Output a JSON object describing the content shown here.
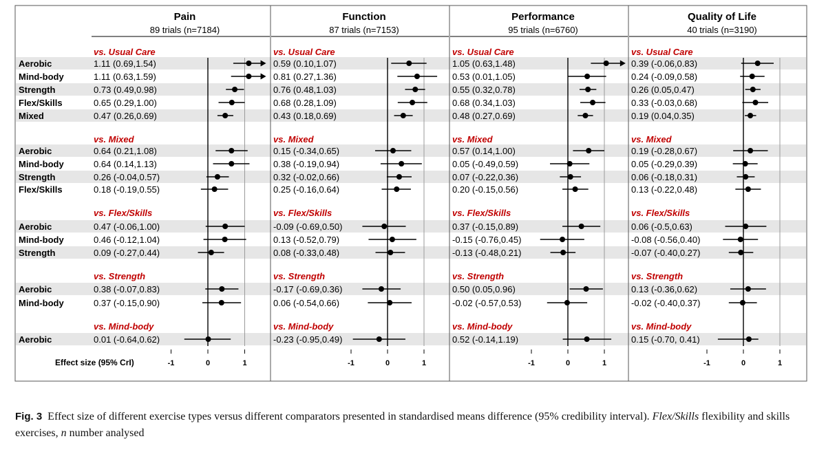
{
  "chart_data": {
    "type": "forest",
    "ylabel_row": "Effect size (95% CrI)",
    "xlim": [
      -1,
      1
    ],
    "ticks": [
      -1,
      0,
      1
    ],
    "tick_labels": [
      "-1",
      "0",
      "1"
    ],
    "panels": [
      {
        "title": "Pain",
        "subtitle": "89 trials (n=7184)",
        "groups": [
          {
            "label": "vs. Usual Care",
            "rows": [
              {
                "name": "Aerobic",
                "text": "1.11 (0.69,1.54)",
                "est": 1.11,
                "lo": 0.69,
                "hi": 1.54
              },
              {
                "name": "Mind-body",
                "text": "1.11 (0.63,1.59)",
                "est": 1.11,
                "lo": 0.63,
                "hi": 1.59
              },
              {
                "name": "Strength",
                "text": "0.73 (0.49,0.98)",
                "est": 0.73,
                "lo": 0.49,
                "hi": 0.98
              },
              {
                "name": "Flex/Skills",
                "text": "0.65 (0.29,1.00)",
                "est": 0.65,
                "lo": 0.29,
                "hi": 1.0
              },
              {
                "name": "Mixed",
                "text": "0.47 (0.26,0.69)",
                "est": 0.47,
                "lo": 0.26,
                "hi": 0.69
              }
            ]
          },
          {
            "label": "vs. Mixed",
            "rows": [
              {
                "name": "Aerobic",
                "text": "0.64 (0.21,1.08)",
                "est": 0.64,
                "lo": 0.21,
                "hi": 1.08
              },
              {
                "name": "Mind-body",
                "text": "0.64 (0.14,1.13)",
                "est": 0.64,
                "lo": 0.14,
                "hi": 1.13
              },
              {
                "name": "Strength",
                "text": "0.26 (-0.04,0.57)",
                "est": 0.26,
                "lo": -0.04,
                "hi": 0.57
              },
              {
                "name": "Flex/Skills",
                "text": "0.18 (-0.19,0.55)",
                "est": 0.18,
                "lo": -0.19,
                "hi": 0.55
              }
            ]
          },
          {
            "label": "vs. Flex/Skills",
            "rows": [
              {
                "name": "Aerobic",
                "text": "0.47 (-0.06,1.00)",
                "est": 0.47,
                "lo": -0.06,
                "hi": 1.0
              },
              {
                "name": "Mind-body",
                "text": "0.46 (-0.12,1.04)",
                "est": 0.46,
                "lo": -0.12,
                "hi": 1.04
              },
              {
                "name": "Strength",
                "text": "0.09 (-0.27,0.44)",
                "est": 0.09,
                "lo": -0.27,
                "hi": 0.44
              }
            ]
          },
          {
            "label": "vs. Strength",
            "rows": [
              {
                "name": "Aerobic",
                "text": "0.38 (-0.07,0.83)",
                "est": 0.38,
                "lo": -0.07,
                "hi": 0.83
              },
              {
                "name": "Mind-body",
                "text": "0.37 (-0.15,0.90)",
                "est": 0.37,
                "lo": -0.15,
                "hi": 0.9
              }
            ]
          },
          {
            "label": "vs. Mind-body",
            "rows": [
              {
                "name": "Aerobic",
                "text": "0.01 (-0.64,0.62)",
                "est": 0.01,
                "lo": -0.64,
                "hi": 0.62
              }
            ]
          }
        ]
      },
      {
        "title": "Function",
        "subtitle": "87 trials (n=7153)",
        "groups": [
          {
            "label": "vs. Usual Care",
            "rows": [
              {
                "text": "0.59 (0.10,1.07)",
                "est": 0.59,
                "lo": 0.1,
                "hi": 1.07
              },
              {
                "text": "0.81 (0.27,1.36)",
                "est": 0.81,
                "lo": 0.27,
                "hi": 1.36
              },
              {
                "text": "0.76 (0.48,1.03)",
                "est": 0.76,
                "lo": 0.48,
                "hi": 1.03
              },
              {
                "text": "0.68 (0.28,1.09)",
                "est": 0.68,
                "lo": 0.28,
                "hi": 1.09
              },
              {
                "text": "0.43 (0.18,0.69)",
                "est": 0.43,
                "lo": 0.18,
                "hi": 0.69
              }
            ]
          },
          {
            "label": "vs. Mixed",
            "rows": [
              {
                "text": "0.15 (-0.34,0.65)",
                "est": 0.15,
                "lo": -0.34,
                "hi": 0.65
              },
              {
                "text": "0.38 (-0.19,0.94)",
                "est": 0.38,
                "lo": -0.19,
                "hi": 0.94
              },
              {
                "text": "0.32 (-0.02,0.66)",
                "est": 0.32,
                "lo": -0.02,
                "hi": 0.66
              },
              {
                "text": "0.25 (-0.16,0.64)",
                "est": 0.25,
                "lo": -0.16,
                "hi": 0.64
              }
            ]
          },
          {
            "label": "vs. Flex/Skills",
            "rows": [
              {
                "text": "-0.09 (-0.69,0.50)",
                "est": -0.09,
                "lo": -0.69,
                "hi": 0.5
              },
              {
                "text": "0.13 (-0.52,0.79)",
                "est": 0.13,
                "lo": -0.52,
                "hi": 0.79
              },
              {
                "text": "0.08 (-0.33,0.48)",
                "est": 0.08,
                "lo": -0.33,
                "hi": 0.48
              }
            ]
          },
          {
            "label": "vs. Strength",
            "rows": [
              {
                "text": "-0.17 (-0.69,0.36)",
                "est": -0.17,
                "lo": -0.69,
                "hi": 0.36
              },
              {
                "text": "0.06 (-0.54,0.66)",
                "est": 0.06,
                "lo": -0.54,
                "hi": 0.66
              }
            ]
          },
          {
            "label": "vs. Mind-body",
            "rows": [
              {
                "text": "-0.23 (-0.95,0.49)",
                "est": -0.23,
                "lo": -0.95,
                "hi": 0.49
              }
            ]
          }
        ]
      },
      {
        "title": "Performance",
        "subtitle": "95 trials (n=6760)",
        "groups": [
          {
            "label": "vs. Usual Care",
            "rows": [
              {
                "text": "1.05 (0.63,1.48)",
                "est": 1.05,
                "lo": 0.63,
                "hi": 1.48
              },
              {
                "text": "0.53 (0.01,1.05)",
                "est": 0.53,
                "lo": 0.01,
                "hi": 1.05
              },
              {
                "text": "0.55 (0.32,0.78)",
                "est": 0.55,
                "lo": 0.32,
                "hi": 0.78
              },
              {
                "text": "0.68 (0.34,1.03)",
                "est": 0.68,
                "lo": 0.34,
                "hi": 1.03
              },
              {
                "text": "0.48 (0.27,0.69)",
                "est": 0.48,
                "lo": 0.27,
                "hi": 0.69
              }
            ]
          },
          {
            "label": "vs. Mixed",
            "rows": [
              {
                "text": "0.57 (0.14,1.00)",
                "est": 0.57,
                "lo": 0.14,
                "hi": 1.0
              },
              {
                "text": "0.05 (-0.49,0.59)",
                "est": 0.05,
                "lo": -0.49,
                "hi": 0.59
              },
              {
                "text": "0.07 (-0.22,0.36)",
                "est": 0.07,
                "lo": -0.22,
                "hi": 0.36
              },
              {
                "text": "0.20 (-0.15,0.56)",
                "est": 0.2,
                "lo": -0.15,
                "hi": 0.56
              }
            ]
          },
          {
            "label": "vs. Flex/Skills",
            "rows": [
              {
                "text": "0.37 (-0.15,0.89)",
                "est": 0.37,
                "lo": -0.15,
                "hi": 0.89
              },
              {
                "text": "-0.15 (-0.76,0.45)",
                "est": -0.15,
                "lo": -0.76,
                "hi": 0.45
              },
              {
                "text": "-0.13 (-0.48,0.21)",
                "est": -0.13,
                "lo": -0.48,
                "hi": 0.21
              }
            ]
          },
          {
            "label": "vs. Strength",
            "rows": [
              {
                "text": "0.50 (0.05,0.96)",
                "est": 0.5,
                "lo": 0.05,
                "hi": 0.96
              },
              {
                "text": "-0.02 (-0.57,0.53)",
                "est": -0.02,
                "lo": -0.57,
                "hi": 0.53
              }
            ]
          },
          {
            "label": "vs. Mind-body",
            "rows": [
              {
                "text": "0.52 (-0.14,1.19)",
                "est": 0.52,
                "lo": -0.14,
                "hi": 1.19
              }
            ]
          }
        ]
      },
      {
        "title": "Quality of Life",
        "subtitle": "40 trials (n=3190)",
        "groups": [
          {
            "label": "vs. Usual Care",
            "rows": [
              {
                "text": "0.39 (-0.06,0.83)",
                "est": 0.39,
                "lo": -0.06,
                "hi": 0.83
              },
              {
                "text": "0.24 (-0.09,0.58)",
                "est": 0.24,
                "lo": -0.09,
                "hi": 0.58
              },
              {
                "text": "0.26 (0.05,0.47)",
                "est": 0.26,
                "lo": 0.05,
                "hi": 0.47
              },
              {
                "text": "0.33 (-0.03,0.68)",
                "est": 0.33,
                "lo": -0.03,
                "hi": 0.68
              },
              {
                "text": "0.19 (0.04,0.35)",
                "est": 0.19,
                "lo": 0.04,
                "hi": 0.35
              }
            ]
          },
          {
            "label": "vs. Mixed",
            "rows": [
              {
                "text": "0.19 (-0.28,0.67)",
                "est": 0.19,
                "lo": -0.28,
                "hi": 0.67
              },
              {
                "text": "0.05 (-0.29,0.39)",
                "est": 0.05,
                "lo": -0.29,
                "hi": 0.39
              },
              {
                "text": "0.06 (-0.18,0.31)",
                "est": 0.06,
                "lo": -0.18,
                "hi": 0.31
              },
              {
                "text": "0.13 (-0.22,0.48)",
                "est": 0.13,
                "lo": -0.22,
                "hi": 0.48
              }
            ]
          },
          {
            "label": "vs. Flex/Skills",
            "rows": [
              {
                "text": "0.06 (-0.5,0.63)",
                "est": 0.06,
                "lo": -0.5,
                "hi": 0.63
              },
              {
                "text": "-0.08 (-0.56,0.40)",
                "est": -0.08,
                "lo": -0.56,
                "hi": 0.4
              },
              {
                "text": "-0.07 (-0.40,0.27)",
                "est": -0.07,
                "lo": -0.4,
                "hi": 0.27
              }
            ]
          },
          {
            "label": "vs. Strength",
            "rows": [
              {
                "text": "0.13 (-0.36,0.62)",
                "est": 0.13,
                "lo": -0.36,
                "hi": 0.62
              },
              {
                "text": "-0.02 (-0.40,0.37)",
                "est": -0.02,
                "lo": -0.4,
                "hi": 0.37
              }
            ]
          },
          {
            "label": "vs. Mind-body",
            "rows": [
              {
                "text": "0.15 (-0.70, 0.41)",
                "est": 0.15,
                "lo": -0.7,
                "hi": 0.41
              }
            ]
          }
        ]
      }
    ]
  },
  "colors": {
    "group_label": "#c00000",
    "band": "#e6e6e6",
    "ref_line": "#999999",
    "border": "#555555",
    "ink": "#000000"
  },
  "caption": {
    "fig_label": "Fig. 3",
    "text": "Effect size of different exercise types versus different comparators presented in standardised means difference (95% credibility interval).",
    "term1": "Flex/Skills",
    "def1": "flexibility and skills exercises,",
    "term2": "n",
    "def2": "number analysed"
  }
}
